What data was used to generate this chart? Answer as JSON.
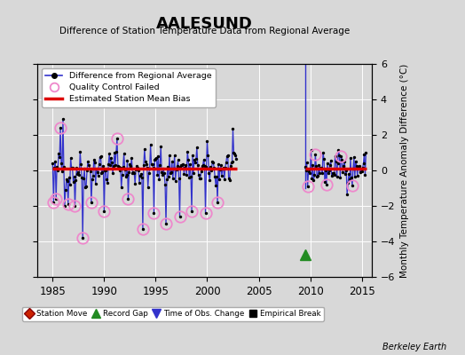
{
  "title": "AALESUND",
  "subtitle": "Difference of Station Temperature Data from Regional Average",
  "ylabel": "Monthly Temperature Anomaly Difference (°C)",
  "credit": "Berkeley Earth",
  "xlim": [
    1983.5,
    2016
  ],
  "ylim": [
    -6,
    6
  ],
  "yticks": [
    -6,
    -4,
    -2,
    0,
    2,
    4,
    6
  ],
  "xticks": [
    1985,
    1990,
    1995,
    2000,
    2005,
    2010,
    2015
  ],
  "bg_color": "#d8d8d8",
  "plot_bg": "#d8d8d8",
  "line_color": "#3333cc",
  "dot_color": "#000000",
  "bias_color": "#dd0000",
  "qc_color": "#ee88cc",
  "green_color": "#228B22",
  "blue_arrow_color": "#3333cc",
  "period1_start": 1985.0,
  "period1_end": 2002.9,
  "period2_start": 2009.5,
  "period2_end": 2015.5,
  "bias1_y": 0.12,
  "bias2_y": 0.12,
  "spike_x": 2009.5,
  "record_gap_x": 2009.5,
  "record_gap_y": -4.75,
  "seed": 42
}
